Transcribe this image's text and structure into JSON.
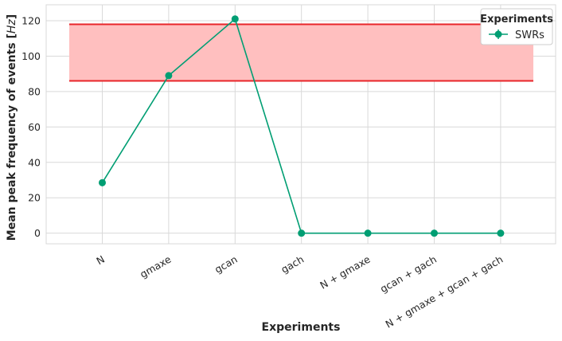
{
  "chart_data": {
    "type": "line",
    "xlabel": "Experiments",
    "ylabel": "Mean peak frequency of events [Hz]",
    "ylabel_prefix": "Mean peak frequency of events [",
    "ylabel_unit": "Hz",
    "ylabel_suffix": "]",
    "categories": [
      "N",
      "gmaxe",
      "gcan",
      "gach",
      "N + gmaxe",
      "gcan + gach",
      "N + gmaxe + gcan + gach"
    ],
    "series": [
      {
        "name": "SWRs",
        "values": [
          28.5,
          89,
          121,
          0,
          0,
          0,
          0
        ],
        "color": "#009e73"
      }
    ],
    "reference_band": {
      "low": 86,
      "high": 118,
      "fill": "#ffbfbf",
      "edge": "#e8262a"
    },
    "ylim": [
      -6,
      129
    ],
    "yticks": [
      0,
      20,
      40,
      60,
      80,
      100,
      120
    ],
    "grid": true,
    "legend": {
      "title": "Experiments",
      "placement": "top-right"
    }
  }
}
